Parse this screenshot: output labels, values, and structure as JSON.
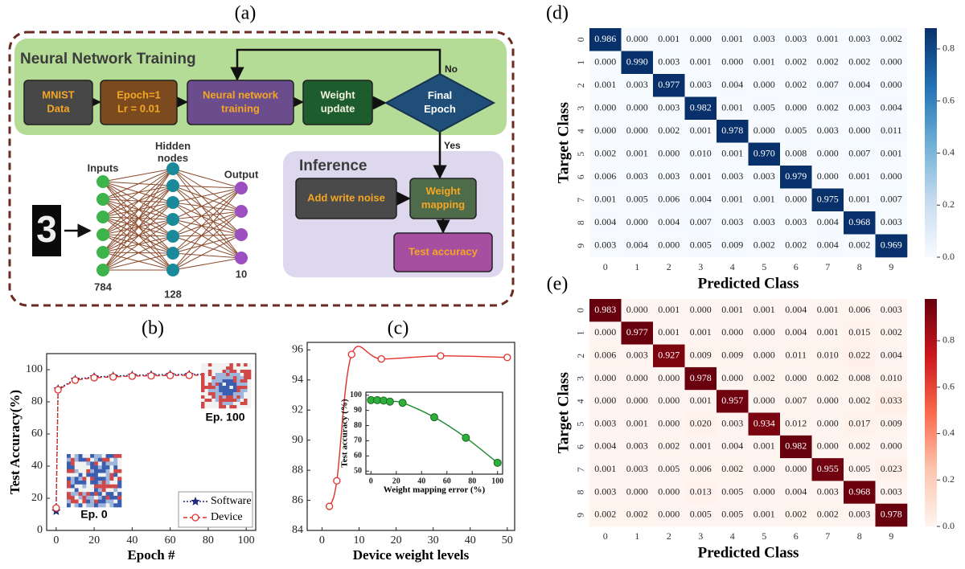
{
  "diagram": {
    "title": "(a)",
    "sections": [
      {
        "title": "Neural Network Training"
      },
      {
        "title": "Inference"
      }
    ],
    "nodes": [
      {
        "lines": [
          "MNIST",
          "Data"
        ]
      },
      {
        "lines": [
          "Epoch=1",
          "Lr = 0.01"
        ]
      },
      {
        "lines": [
          "Neural network",
          "training"
        ]
      },
      {
        "lines": [
          "Weight",
          "update"
        ]
      },
      {
        "lines": [
          "Final",
          "Epoch"
        ]
      },
      {
        "lines": [
          "Add write noise"
        ]
      },
      {
        "lines": [
          "Weight",
          "mapping"
        ]
      },
      {
        "lines": [
          "Test accuracy"
        ]
      }
    ],
    "edge_labels": [
      "No",
      "Yes"
    ],
    "network": {
      "digit": "3",
      "layers": [
        {
          "name": [
            "Inputs"
          ],
          "size": 784
        },
        {
          "name": [
            "Hidden",
            "nodes"
          ],
          "size": 128
        },
        {
          "name": [
            "Output"
          ],
          "size": 10
        }
      ]
    }
  },
  "chart_data": [
    {
      "type": "line",
      "title": "(b)",
      "x_label": "Epoch #",
      "y_label": "Test Accuracy(%)",
      "x": [
        0,
        1,
        10,
        20,
        30,
        40,
        50,
        60,
        70,
        80,
        90,
        100
      ],
      "series": [
        {
          "name": "Software",
          "color": "#1f2a7a",
          "marker": "star",
          "values": [
            12,
            88,
            94,
            95.5,
            96,
            96.5,
            96.8,
            97,
            97,
            97.2,
            97.2,
            97.3
          ]
        },
        {
          "name": "Device",
          "color": "#e0302a",
          "marker": "circle",
          "values": [
            14,
            87.5,
            93.5,
            95,
            95.5,
            96,
            96.2,
            96.4,
            96.5,
            96.6,
            96.6,
            96.7
          ]
        }
      ],
      "xlim": [
        -5,
        105
      ],
      "xticks": [
        0,
        20,
        40,
        60,
        80,
        100
      ],
      "ylim": [
        0,
        110
      ],
      "yticks": [
        0,
        20,
        40,
        60,
        80,
        100
      ],
      "legend": "lower right",
      "annotations": [
        "Ep. 0",
        "Ep. 100"
      ]
    },
    {
      "type": "line",
      "title": "(c)",
      "x_label": "Device weight levels",
      "x": [
        2,
        4,
        8,
        16,
        32,
        50
      ],
      "values": [
        85.6,
        87.3,
        95.7,
        95.4,
        95.6,
        95.5
      ],
      "color": "#e0302a",
      "marker": "circle",
      "smooth": true,
      "xlim": [
        -4,
        52
      ],
      "xticks": [
        0,
        10,
        20,
        30,
        40,
        50
      ],
      "ylim": [
        84,
        96.5
      ],
      "yticks": [
        84,
        86,
        88,
        90,
        92,
        94,
        96
      ]
    },
    {
      "type": "line",
      "x_label": "Weight mapping error (%)",
      "y_label": "Test accuracy (%)",
      "x": [
        0,
        5,
        10,
        15,
        25,
        50,
        75,
        100
      ],
      "values": [
        96.8,
        96.8,
        96.5,
        95.8,
        95,
        85.5,
        72,
        55.5
      ],
      "color": "#1e8a2e",
      "marker": "dot",
      "smooth": true,
      "xlim": [
        -4,
        104
      ],
      "xticks": [
        0,
        20,
        40,
        60,
        80,
        100
      ],
      "ylim": [
        48,
        102
      ],
      "yticks": [
        50,
        60,
        70,
        80,
        90,
        100
      ]
    },
    {
      "type": "heatmap",
      "title": "(d)",
      "x_label": "Predicted Class",
      "y_label": "Target Class",
      "categories": [
        "0",
        "1",
        "2",
        "3",
        "4",
        "5",
        "6",
        "7",
        "8",
        "9"
      ],
      "rows": [
        "0",
        "1",
        "2",
        "3",
        "4",
        "5",
        "6",
        "7",
        "8",
        "9"
      ],
      "colormap": "Blues",
      "clim": [
        0,
        0.88
      ],
      "cticks": [
        {
          "value": 0,
          "label": "0.0"
        },
        0.2,
        0.4,
        0.6,
        0.8
      ],
      "values": [
        [
          0.986,
          0,
          0.001,
          0,
          0.001,
          0.003,
          0.003,
          0.001,
          0.003,
          0.002
        ],
        [
          0,
          0.99,
          0.003,
          0.001,
          0,
          0.001,
          0.002,
          0.002,
          0.002,
          0
        ],
        [
          0.001,
          0.003,
          0.977,
          0.003,
          0.004,
          0,
          0.002,
          0.007,
          0.004,
          0
        ],
        [
          0,
          0,
          0.003,
          0.982,
          0.001,
          0.005,
          0,
          0.002,
          0.003,
          0.004
        ],
        [
          0,
          0,
          0.002,
          0.001,
          0.978,
          0,
          0.005,
          0.003,
          0,
          0.011
        ],
        [
          0.002,
          0.001,
          0,
          0.01,
          0.001,
          0.97,
          0.008,
          0,
          0.007,
          0.001
        ],
        [
          0.006,
          0.003,
          0.003,
          0.001,
          0.003,
          0.003,
          0.979,
          0,
          0.001,
          0
        ],
        [
          0.001,
          0.005,
          0.006,
          0.004,
          0.001,
          0.001,
          0,
          0.975,
          0.001,
          0.007
        ],
        [
          0.004,
          0,
          0.004,
          0.007,
          0.003,
          0.003,
          0.003,
          0.004,
          0.968,
          0.003
        ],
        [
          0.003,
          0.004,
          0,
          0.005,
          0.009,
          0.002,
          0.002,
          0.004,
          0.002,
          0.969
        ]
      ],
      "value_labels": [
        [
          "0.986",
          "0.000",
          "0.001",
          "0.000",
          "0.001",
          "0.003",
          "0.003",
          "0.001",
          "0.003",
          "0.002"
        ],
        [
          "0.000",
          "0.990",
          "0.003",
          "0.001",
          "0.000",
          "0.001",
          "0.002",
          "0.002",
          "0.002",
          "0.000"
        ],
        [
          "0.001",
          "0.003",
          "0.977",
          "0.003",
          "0.004",
          "0.000",
          "0.002",
          "0.007",
          "0.004",
          "0.000"
        ],
        [
          "0.000",
          "0.000",
          "0.003",
          "0.982",
          "0.001",
          "0.005",
          "0.000",
          "0.002",
          "0.003",
          "0.004"
        ],
        [
          "0.000",
          "0.000",
          "0.002",
          "0.001",
          "0.978",
          "0.000",
          "0.005",
          "0.003",
          "0.000",
          "0.011"
        ],
        [
          "0.002",
          "0.001",
          "0.000",
          "0.010",
          "0.001",
          "0.970",
          "0.008",
          "0.000",
          "0.007",
          "0.001"
        ],
        [
          "0.006",
          "0.003",
          "0.003",
          "0.001",
          "0.003",
          "0.003",
          "0.979",
          "0.000",
          "0.001",
          "0.000"
        ],
        [
          "0.001",
          "0.005",
          "0.006",
          "0.004",
          "0.001",
          "0.001",
          "0.000",
          "0.975",
          "0.001",
          "0.007"
        ],
        [
          "0.004",
          "0.000",
          "0.004",
          "0.007",
          "0.003",
          "0.003",
          "0.003",
          "0.004",
          "0.968",
          "0.003"
        ],
        [
          "0.003",
          "0.004",
          "0.000",
          "0.005",
          "0.009",
          "0.002",
          "0.002",
          "0.004",
          "0.002",
          "0.969"
        ]
      ]
    },
    {
      "type": "heatmap",
      "title": "(e)",
      "x_label": "Predicted Class",
      "y_label": "Target Class",
      "categories": [
        "0",
        "1",
        "2",
        "3",
        "4",
        "5",
        "6",
        "7",
        "8",
        "9"
      ],
      "rows": [
        "0",
        "1",
        "2",
        "3",
        "4",
        "5",
        "6",
        "7",
        "8",
        "9"
      ],
      "colormap": "Reds",
      "clim": [
        0,
        0.98
      ],
      "cticks": [
        {
          "value": 0,
          "label": "0.0"
        },
        0.2,
        0.4,
        0.6,
        0.8
      ],
      "values": [
        [
          0.983,
          0,
          0.001,
          0,
          0.001,
          0.001,
          0.004,
          0.001,
          0.006,
          0.003
        ],
        [
          0,
          0.977,
          0.001,
          0.001,
          0,
          0,
          0.004,
          0.001,
          0.015,
          0.002
        ],
        [
          0.006,
          0.003,
          0.927,
          0.009,
          0.009,
          0,
          0.011,
          0.01,
          0.022,
          0.004
        ],
        [
          0,
          0,
          0,
          0.978,
          0,
          0.002,
          0,
          0.002,
          0.008,
          0.01
        ],
        [
          0,
          0,
          0,
          0.001,
          0.957,
          0,
          0.007,
          0,
          0.002,
          0.033
        ],
        [
          0.003,
          0.001,
          0,
          0.02,
          0.003,
          0.934,
          0.012,
          0,
          0.017,
          0.009
        ],
        [
          0.004,
          0.003,
          0.002,
          0.001,
          0.004,
          0.001,
          0.982,
          0,
          0.002,
          0
        ],
        [
          0.001,
          0.003,
          0.005,
          0.006,
          0.002,
          0,
          0,
          0.955,
          0.005,
          0.023
        ],
        [
          0.003,
          0,
          0,
          0.013,
          0.005,
          0,
          0.004,
          0.003,
          0.968,
          0.003
        ],
        [
          0.002,
          0.002,
          0,
          0.005,
          0.005,
          0.001,
          0.002,
          0.002,
          0.003,
          0.978
        ]
      ],
      "value_labels": [
        [
          "0.983",
          "0.000",
          "0.001",
          "0.000",
          "0.001",
          "0.001",
          "0.004",
          "0.001",
          "0.006",
          "0.003"
        ],
        [
          "0.000",
          "0.977",
          "0.001",
          "0.001",
          "0.000",
          "0.000",
          "0.004",
          "0.001",
          "0.015",
          "0.002"
        ],
        [
          "0.006",
          "0.003",
          "0.927",
          "0.009",
          "0.009",
          "0.000",
          "0.011",
          "0.010",
          "0.022",
          "0.004"
        ],
        [
          "0.000",
          "0.000",
          "0.000",
          "0.978",
          "0.000",
          "0.002",
          "0.000",
          "0.002",
          "0.008",
          "0.010"
        ],
        [
          "0.000",
          "0.000",
          "0.000",
          "0.001",
          "0.957",
          "0.000",
          "0.007",
          "0.000",
          "0.002",
          "0.033"
        ],
        [
          "0.003",
          "0.001",
          "0.000",
          "0.020",
          "0.003",
          "0.934",
          "0.012",
          "0.000",
          "0.017",
          "0.009"
        ],
        [
          "0.004",
          "0.003",
          "0.002",
          "0.001",
          "0.004",
          "0.001",
          "0.982",
          "0.000",
          "0.002",
          "0.000"
        ],
        [
          "0.001",
          "0.003",
          "0.005",
          "0.006",
          "0.002",
          "0.000",
          "0.000",
          "0.955",
          "0.005",
          "0.023"
        ],
        [
          "0.003",
          "0.000",
          "0.000",
          "0.013",
          "0.005",
          "0.000",
          "0.004",
          "0.003",
          "0.968",
          "0.003"
        ],
        [
          "0.002",
          "0.002",
          "0.000",
          "0.005",
          "0.005",
          "0.001",
          "0.002",
          "0.002",
          "0.003",
          "0.978"
        ]
      ]
    }
  ]
}
